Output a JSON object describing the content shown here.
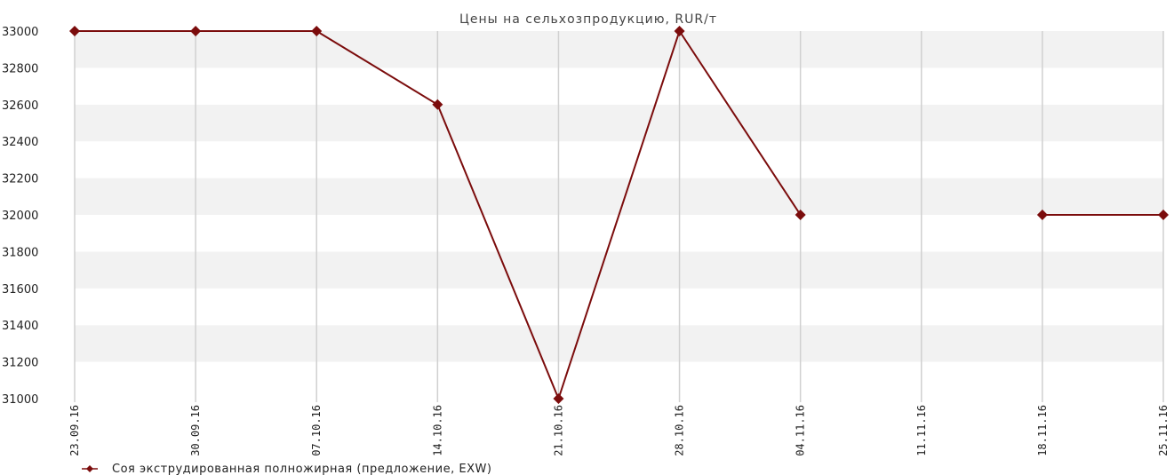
{
  "chart_data": {
    "type": "line",
    "title": "Цены на сельхозпродукцию, RUR/т",
    "categories": [
      "23.09.16",
      "30.09.16",
      "07.10.16",
      "14.10.16",
      "21.10.16",
      "28.10.16",
      "04.11.16",
      "11.11.16",
      "18.11.16",
      "25.11.16"
    ],
    "series": [
      {
        "name": "Соя экструдированная полножирная (предложение, EXW)",
        "values": [
          33000,
          33000,
          33000,
          32600,
          31000,
          33000,
          32000,
          null,
          32000,
          32000
        ],
        "color": "#7b0c0c"
      }
    ],
    "ylim": [
      31000,
      33000
    ],
    "yticks": [
      31000,
      31200,
      31400,
      31600,
      31800,
      32000,
      32200,
      32400,
      32600,
      32800,
      33000
    ],
    "grid": true,
    "legend_position": "bottom-left",
    "band_color": "#f2f2f2",
    "gridline_color": "#d0d0d0"
  }
}
